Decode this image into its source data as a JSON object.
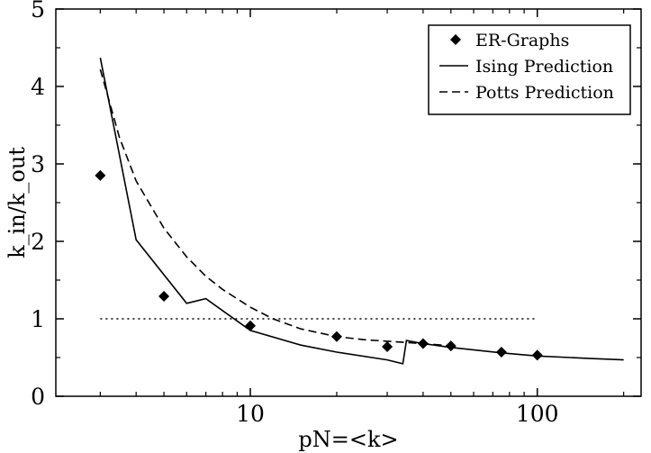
{
  "chart_data": {
    "type": "scatter",
    "xlabel": "pN=<k>",
    "ylabel": "k_in/k_out",
    "xscale": "log",
    "xlim": [
      2.1,
      230
    ],
    "ylim": [
      0,
      5
    ],
    "x_ticks": [
      {
        "value": 10,
        "label": "10"
      },
      {
        "value": 100,
        "label": "100"
      }
    ],
    "x_minor_ticks": [
      3,
      4,
      5,
      6,
      7,
      8,
      9,
      20,
      30,
      40,
      50,
      60,
      70,
      80,
      90,
      200
    ],
    "y_ticks": [
      {
        "value": 0,
        "label": "0"
      },
      {
        "value": 1,
        "label": "1"
      },
      {
        "value": 2,
        "label": "2"
      },
      {
        "value": 3,
        "label": "3"
      },
      {
        "value": 4,
        "label": "4"
      },
      {
        "value": 5,
        "label": "5"
      }
    ],
    "grid": false,
    "legend_position": "top-right",
    "series": [
      {
        "name": "ER-Graphs",
        "style": "diamond-markers",
        "color": "#000000",
        "x": [
          3,
          5,
          10,
          20,
          30,
          40,
          50,
          75,
          100
        ],
        "y": [
          2.85,
          1.29,
          0.91,
          0.77,
          0.64,
          0.68,
          0.65,
          0.57,
          0.53
        ]
      },
      {
        "name": "Ising Prediction",
        "style": "solid",
        "color": "#000000",
        "x": [
          3,
          4,
          6,
          7,
          10,
          15,
          20,
          30,
          34,
          35,
          40,
          50,
          75,
          100,
          150,
          200
        ],
        "y": [
          4.37,
          2.02,
          1.2,
          1.26,
          0.85,
          0.66,
          0.57,
          0.47,
          0.42,
          0.72,
          0.68,
          0.63,
          0.56,
          0.52,
          0.49,
          0.47
        ]
      },
      {
        "name": "Potts Prediction",
        "style": "dashed",
        "color": "#000000",
        "x": [
          3,
          3.5,
          4,
          5,
          6,
          7,
          8,
          10,
          12,
          15,
          20,
          25,
          30,
          40,
          50
        ],
        "y": [
          4.22,
          3.34,
          2.78,
          2.17,
          1.8,
          1.55,
          1.38,
          1.15,
          1.0,
          0.87,
          0.77,
          0.73,
          0.71,
          0.68,
          0.65
        ]
      },
      {
        "style": "dotted",
        "color": "#000000",
        "x": [
          3,
          100
        ],
        "y": [
          1,
          1
        ]
      }
    ]
  }
}
